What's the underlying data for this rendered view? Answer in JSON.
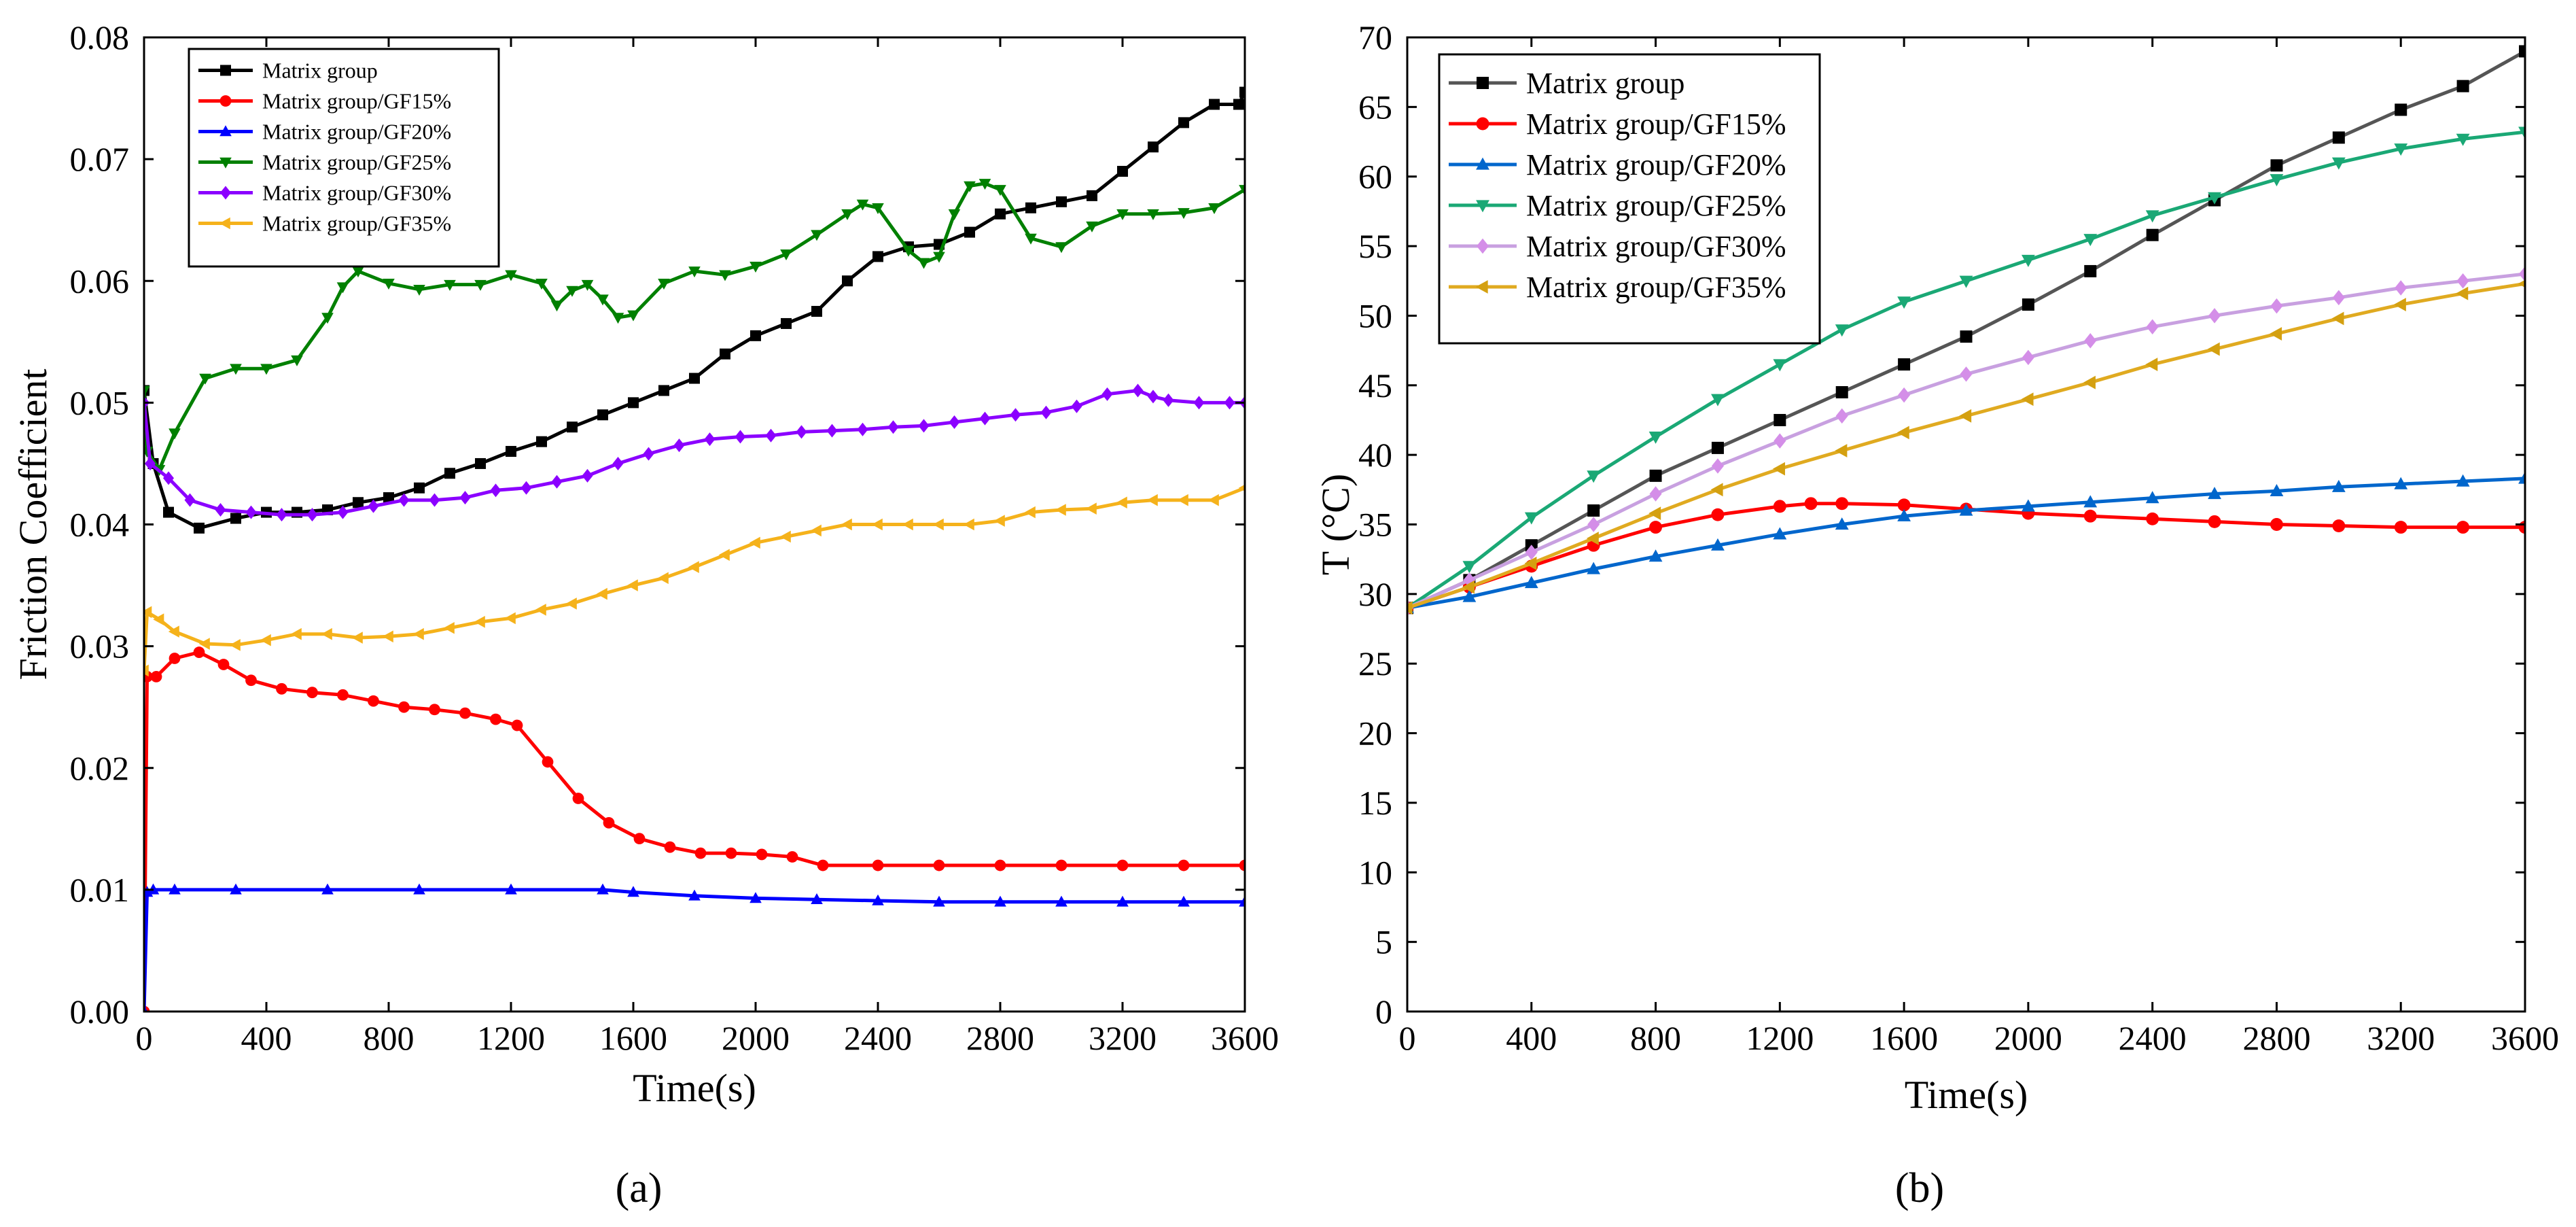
{
  "figure": {
    "panel_a_label": "(a)",
    "panel_b_label": "(b)"
  },
  "chart_data": [
    {
      "type": "line",
      "panel": "a",
      "title": "",
      "xlabel": "Time(s)",
      "ylabel": "Friction Coefficient",
      "xlim": [
        0,
        3600
      ],
      "ylim": [
        0,
        0.08
      ],
      "xticks": [
        0,
        400,
        800,
        1200,
        1600,
        2000,
        2400,
        2800,
        3200,
        3600
      ],
      "xtick_labels": [
        "0",
        "400",
        "800",
        "1200",
        "1600",
        "2000",
        "2400",
        "2800",
        "3200",
        "3600"
      ],
      "yticks": [
        0,
        0.01,
        0.02,
        0.03,
        0.04,
        0.05,
        0.06,
        0.07,
        0.08
      ],
      "ytick_labels": [
        "0.00",
        "0.01",
        "0.02",
        "0.03",
        "0.04",
        "0.05",
        "0.06",
        "0.07",
        "0.08"
      ],
      "grid": false,
      "legend_position": "top-left",
      "series": [
        {
          "name": "Matrix group",
          "color": "#000000",
          "marker": "square",
          "x": [
            0,
            30,
            80,
            180,
            300,
            400,
            500,
            600,
            700,
            800,
            900,
            1000,
            1100,
            1200,
            1300,
            1400,
            1500,
            1600,
            1700,
            1800,
            1900,
            2000,
            2100,
            2200,
            2300,
            2400,
            2500,
            2600,
            2700,
            2800,
            2900,
            3000,
            3100,
            3200,
            3300,
            3400,
            3500,
            3580,
            3600
          ],
          "y": [
            0.051,
            0.045,
            0.041,
            0.0397,
            0.0405,
            0.041,
            0.041,
            0.0412,
            0.0418,
            0.0422,
            0.043,
            0.0442,
            0.045,
            0.046,
            0.0468,
            0.048,
            0.049,
            0.05,
            0.051,
            0.052,
            0.054,
            0.0555,
            0.0565,
            0.0575,
            0.06,
            0.062,
            0.0628,
            0.063,
            0.064,
            0.0655,
            0.066,
            0.0665,
            0.067,
            0.069,
            0.071,
            0.073,
            0.0745,
            0.0745,
            0.0755
          ]
        },
        {
          "name": "Matrix group/GF15%",
          "color": "#ff0000",
          "marker": "circle",
          "x": [
            0,
            10,
            40,
            100,
            180,
            260,
            350,
            450,
            550,
            650,
            750,
            850,
            950,
            1050,
            1150,
            1220,
            1320,
            1420,
            1520,
            1620,
            1720,
            1820,
            1920,
            2020,
            2120,
            2220,
            2400,
            2600,
            2800,
            3000,
            3200,
            3400,
            3600
          ],
          "y": [
            0.0,
            0.0275,
            0.0275,
            0.029,
            0.0295,
            0.0285,
            0.0272,
            0.0265,
            0.0262,
            0.026,
            0.0255,
            0.025,
            0.0248,
            0.0245,
            0.024,
            0.0235,
            0.0205,
            0.0175,
            0.0155,
            0.0142,
            0.0135,
            0.013,
            0.013,
            0.0129,
            0.0127,
            0.012,
            0.012,
            0.012,
            0.012,
            0.012,
            0.012,
            0.012,
            0.012
          ]
        },
        {
          "name": "Matrix group/GF20%",
          "color": "#0000ff",
          "marker": "triangle-up",
          "x": [
            0,
            10,
            30,
            100,
            300,
            600,
            900,
            1200,
            1500,
            1600,
            1800,
            2000,
            2200,
            2400,
            2600,
            2800,
            3000,
            3200,
            3400,
            3600
          ],
          "y": [
            0.0,
            0.0098,
            0.01,
            0.01,
            0.01,
            0.01,
            0.01,
            0.01,
            0.01,
            0.0098,
            0.0095,
            0.0093,
            0.0092,
            0.0091,
            0.009,
            0.009,
            0.009,
            0.009,
            0.009,
            0.009
          ]
        },
        {
          "name": "Matrix group/GF25%",
          "color": "#008000",
          "marker": "triangle-down",
          "x": [
            0,
            10,
            50,
            100,
            200,
            300,
            400,
            500,
            600,
            650,
            700,
            800,
            900,
            1000,
            1100,
            1200,
            1300,
            1350,
            1400,
            1450,
            1500,
            1550,
            1600,
            1700,
            1800,
            1900,
            2000,
            2100,
            2200,
            2300,
            2350,
            2400,
            2500,
            2550,
            2600,
            2650,
            2700,
            2750,
            2800,
            2900,
            3000,
            3100,
            3200,
            3300,
            3400,
            3500,
            3600
          ],
          "y": [
            0.051,
            0.046,
            0.0445,
            0.0475,
            0.052,
            0.0528,
            0.0528,
            0.0535,
            0.057,
            0.0595,
            0.0608,
            0.0598,
            0.0593,
            0.0597,
            0.0597,
            0.0605,
            0.0598,
            0.058,
            0.0592,
            0.0597,
            0.0585,
            0.057,
            0.0572,
            0.0598,
            0.0608,
            0.0605,
            0.0612,
            0.0622,
            0.0638,
            0.0655,
            0.0663,
            0.066,
            0.0625,
            0.0615,
            0.062,
            0.0655,
            0.0678,
            0.068,
            0.0675,
            0.0635,
            0.0628,
            0.0645,
            0.0655,
            0.0655,
            0.0656,
            0.066,
            0.0675
          ]
        },
        {
          "name": "Matrix group/GF30%",
          "color": "#8b00ff",
          "marker": "diamond",
          "x": [
            0,
            20,
            80,
            150,
            250,
            350,
            450,
            550,
            650,
            750,
            850,
            950,
            1050,
            1150,
            1250,
            1350,
            1450,
            1550,
            1650,
            1750,
            1850,
            1950,
            2050,
            2150,
            2250,
            2350,
            2450,
            2550,
            2650,
            2750,
            2850,
            2950,
            3050,
            3150,
            3250,
            3300,
            3350,
            3450,
            3550,
            3600
          ],
          "y": [
            0.05,
            0.045,
            0.0438,
            0.042,
            0.0412,
            0.041,
            0.0408,
            0.0408,
            0.041,
            0.0415,
            0.042,
            0.042,
            0.0422,
            0.0428,
            0.043,
            0.0435,
            0.044,
            0.045,
            0.0458,
            0.0465,
            0.047,
            0.0472,
            0.0473,
            0.0476,
            0.0477,
            0.0478,
            0.048,
            0.0481,
            0.0484,
            0.0487,
            0.049,
            0.0492,
            0.0497,
            0.0507,
            0.051,
            0.0505,
            0.0502,
            0.05,
            0.05,
            0.05
          ]
        },
        {
          "name": "Matrix group/GF35%",
          "color": "#f5b21b",
          "marker": "triangle-left",
          "x": [
            0,
            10,
            50,
            100,
            200,
            300,
            400,
            500,
            600,
            700,
            800,
            900,
            1000,
            1100,
            1200,
            1300,
            1400,
            1500,
            1600,
            1700,
            1800,
            1900,
            2000,
            2100,
            2200,
            2300,
            2400,
            2500,
            2600,
            2700,
            2800,
            2900,
            3000,
            3100,
            3200,
            3300,
            3400,
            3500,
            3600
          ],
          "y": [
            0.028,
            0.0328,
            0.0322,
            0.0312,
            0.0302,
            0.0301,
            0.0305,
            0.031,
            0.031,
            0.0307,
            0.0308,
            0.031,
            0.0315,
            0.032,
            0.0323,
            0.033,
            0.0335,
            0.0343,
            0.035,
            0.0356,
            0.0365,
            0.0375,
            0.0385,
            0.039,
            0.0395,
            0.04,
            0.04,
            0.04,
            0.04,
            0.04,
            0.0403,
            0.041,
            0.0412,
            0.0413,
            0.0418,
            0.042,
            0.042,
            0.042,
            0.043
          ]
        }
      ]
    },
    {
      "type": "line",
      "panel": "b",
      "title": "",
      "xlabel": "Time(s)",
      "ylabel": "T (°C)",
      "xlim": [
        0,
        3600
      ],
      "ylim": [
        0,
        70
      ],
      "xticks": [
        0,
        400,
        800,
        1200,
        1600,
        2000,
        2400,
        2800,
        3200,
        3600
      ],
      "xtick_labels": [
        "0",
        "400",
        "800",
        "1200",
        "1600",
        "2000",
        "2400",
        "2800",
        "3200",
        "3600"
      ],
      "yticks": [
        0,
        5,
        10,
        15,
        20,
        25,
        30,
        35,
        40,
        45,
        50,
        55,
        60,
        65,
        70
      ],
      "ytick_labels": [
        "0",
        "5",
        "10",
        "15",
        "20",
        "25",
        "30",
        "35",
        "40",
        "45",
        "50",
        "55",
        "60",
        "65",
        "70"
      ],
      "grid": false,
      "legend_position": "top-left",
      "series": [
        {
          "name": "Matrix group",
          "color": "#000000",
          "line_color": "#555555",
          "marker": "square",
          "x": [
            0,
            200,
            400,
            600,
            800,
            1000,
            1200,
            1400,
            1600,
            1800,
            2000,
            2200,
            2400,
            2600,
            2800,
            3000,
            3200,
            3400,
            3600
          ],
          "y": [
            29,
            31,
            33.5,
            36,
            38.5,
            40.5,
            42.5,
            44.5,
            46.5,
            48.5,
            50.8,
            53.2,
            55.8,
            58.3,
            60.8,
            62.8,
            64.8,
            66.5,
            69
          ]
        },
        {
          "name": "Matrix group/GF15%",
          "color": "#ff0000",
          "marker": "circle",
          "x": [
            0,
            200,
            400,
            600,
            800,
            1000,
            1200,
            1300,
            1400,
            1600,
            1800,
            2000,
            2200,
            2400,
            2600,
            2800,
            3000,
            3200,
            3400,
            3600
          ],
          "y": [
            29,
            30.5,
            32,
            33.5,
            34.8,
            35.7,
            36.3,
            36.5,
            36.5,
            36.4,
            36.1,
            35.8,
            35.6,
            35.4,
            35.2,
            35,
            34.9,
            34.8,
            34.8,
            34.8
          ]
        },
        {
          "name": "Matrix group/GF20%",
          "color": "#0066cc",
          "marker": "triangle-up",
          "x": [
            0,
            200,
            400,
            600,
            800,
            1000,
            1200,
            1400,
            1600,
            1800,
            2000,
            2200,
            2400,
            2600,
            2800,
            3000,
            3200,
            3400,
            3600
          ],
          "y": [
            29,
            29.8,
            30.8,
            31.8,
            32.7,
            33.5,
            34.3,
            35,
            35.6,
            36,
            36.3,
            36.6,
            36.9,
            37.2,
            37.4,
            37.7,
            37.9,
            38.1,
            38.3
          ]
        },
        {
          "name": "Matrix group/GF25%",
          "color": "#1aa875",
          "marker": "triangle-down",
          "x": [
            0,
            200,
            400,
            600,
            800,
            1000,
            1200,
            1400,
            1600,
            1800,
            2000,
            2200,
            2400,
            2600,
            2800,
            3000,
            3200,
            3400,
            3600
          ],
          "y": [
            29,
            32,
            35.5,
            38.5,
            41.3,
            44,
            46.5,
            49,
            51,
            52.5,
            54,
            55.5,
            57.2,
            58.5,
            59.8,
            61,
            62,
            62.7,
            63.2
          ]
        },
        {
          "name": "Matrix group/GF30%",
          "color": "#d48ee8",
          "line_color": "#c8a0e0",
          "marker": "diamond",
          "x": [
            0,
            200,
            400,
            600,
            800,
            1000,
            1200,
            1400,
            1600,
            1800,
            2000,
            2200,
            2400,
            2600,
            2800,
            3000,
            3200,
            3400,
            3600
          ],
          "y": [
            29,
            31,
            33,
            35,
            37.2,
            39.2,
            41,
            42.8,
            44.3,
            45.8,
            47,
            48.2,
            49.2,
            50,
            50.7,
            51.3,
            52,
            52.5,
            53
          ]
        },
        {
          "name": "Matrix group/GF35%",
          "color": "#d4a010",
          "line_color": "#e0aa20",
          "marker": "triangle-left",
          "x": [
            0,
            200,
            400,
            600,
            800,
            1000,
            1200,
            1400,
            1600,
            1800,
            2000,
            2200,
            2400,
            2600,
            2800,
            3000,
            3200,
            3400,
            3600
          ],
          "y": [
            29,
            30.5,
            32.2,
            34,
            35.8,
            37.5,
            39,
            40.3,
            41.6,
            42.8,
            44,
            45.2,
            46.5,
            47.6,
            48.7,
            49.8,
            50.8,
            51.6,
            52.3
          ]
        }
      ]
    }
  ]
}
